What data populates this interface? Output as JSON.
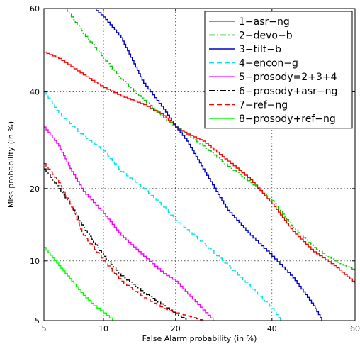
{
  "chart_data": {
    "type": "line",
    "title": "",
    "xlabel": "False Alarm probability (in %)",
    "ylabel": "Miss probability (in %)",
    "x_scale": "probit",
    "y_scale": "probit",
    "xlim": [
      5,
      60
    ],
    "ylim": [
      5,
      60
    ],
    "x_ticks": [
      5,
      10,
      20,
      40,
      60
    ],
    "y_ticks": [
      5,
      10,
      20,
      40,
      60
    ],
    "grid": true,
    "legend_position": "top-right",
    "series": [
      {
        "name": "1−asr−ng",
        "color": "#ff0000",
        "dash": "solid",
        "x": [
          5,
          6,
          8,
          10,
          12,
          15,
          18,
          20,
          22,
          25,
          30,
          35,
          40,
          45,
          50,
          55,
          60
        ],
        "y": [
          49.5,
          48,
          44,
          41,
          39,
          37,
          34.5,
          32,
          30.5,
          29,
          25,
          21.5,
          17.5,
          13.5,
          11,
          9.5,
          7.8
        ]
      },
      {
        "name": "2−devo−b",
        "color": "#00cc00",
        "dash": "dashdot",
        "x": [
          6.5,
          8,
          10,
          12,
          15,
          18,
          20,
          25,
          30,
          35,
          40,
          45,
          50,
          55,
          60
        ],
        "y": [
          60,
          54,
          48,
          43,
          38,
          34,
          32,
          28,
          24,
          21,
          18,
          14,
          11.5,
          10,
          9
        ]
      },
      {
        "name": "3−tilt−b",
        "color": "#0000cc",
        "dash": "solid",
        "x": [
          9,
          10,
          12,
          15,
          18,
          20,
          22,
          25,
          28,
          30,
          35,
          40,
          45,
          50,
          52
        ],
        "y": [
          60,
          58,
          53,
          42,
          36,
          32,
          29,
          23.5,
          19,
          16.5,
          13,
          10.5,
          8.3,
          6,
          5
        ]
      },
      {
        "name": "4−encon−g",
        "color": "#00e5e5",
        "dash": "dash",
        "x": [
          5,
          6,
          8,
          10,
          12,
          15,
          18,
          20,
          25,
          30,
          35,
          40,
          42
        ],
        "y": [
          40,
          35,
          30,
          27,
          23,
          20,
          17,
          15,
          12,
          9.5,
          7.5,
          5.8,
          5
        ]
      },
      {
        "name": "5−prosody=2+3+4",
        "color": "#ff00ff",
        "dash": "solid",
        "x": [
          5,
          6,
          7,
          8,
          10,
          12,
          15,
          18,
          20,
          23,
          25,
          27
        ],
        "y": [
          32,
          28,
          23,
          19.5,
          16,
          13,
          10.5,
          8.7,
          8,
          6.5,
          5.7,
          5
        ]
      },
      {
        "name": "6−prosody+asr−ng",
        "color": "#000000",
        "dash": "dashdot",
        "x": [
          5,
          6,
          7,
          8,
          10,
          12,
          15,
          18,
          20,
          22
        ],
        "y": [
          23.5,
          20,
          17,
          14,
          10.5,
          8.5,
          7,
          6,
          5.4,
          5
        ]
      },
      {
        "name": "7−ref−ng",
        "color": "#ff0000",
        "dash": "dash",
        "x": [
          5,
          6,
          7,
          8,
          10,
          12,
          15,
          18,
          20,
          22,
          25
        ],
        "y": [
          24.5,
          21,
          17,
          13,
          10,
          8,
          6.6,
          5.8,
          5.5,
          5.3,
          5
        ]
      },
      {
        "name": "8−prosody+ref−ng",
        "color": "#00ff00",
        "dash": "solid",
        "x": [
          5,
          6,
          7,
          8,
          9,
          10,
          11
        ],
        "y": [
          11.5,
          9.5,
          8,
          6.8,
          6,
          5.5,
          5
        ]
      }
    ]
  }
}
